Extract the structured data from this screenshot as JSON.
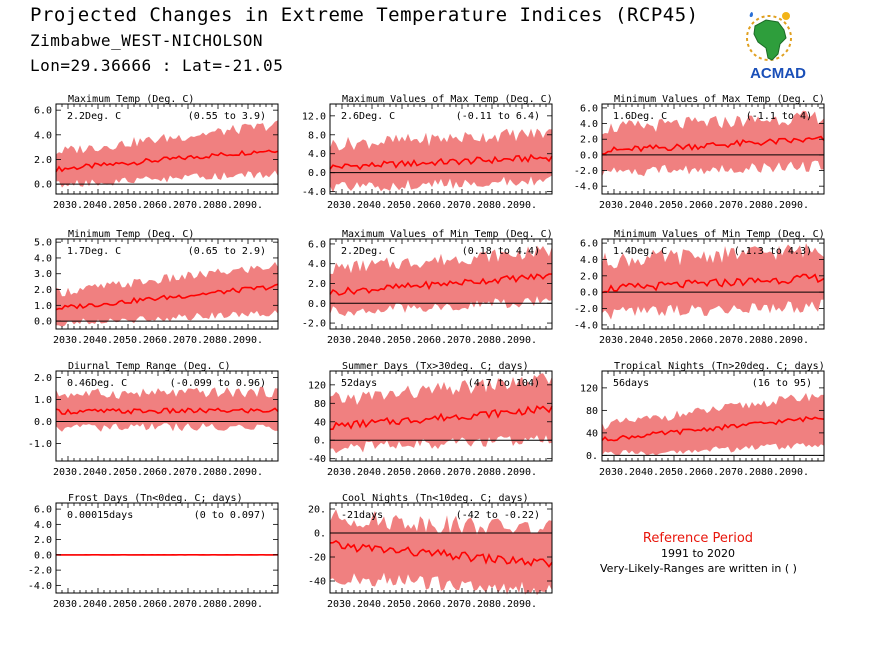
{
  "header": {
    "title": "Projected Changes in Extreme Temperature Indices (RCP45)",
    "location": "Zimbabwe_WEST-NICHOLSON",
    "coordinates": "Lon=29.36666 : Lat=-21.05"
  },
  "logo": {
    "text": "ACMAD",
    "icon": "africa-map-icon"
  },
  "reference": {
    "title": "Reference Period",
    "years": "1991 to 2020",
    "note": "Very-Likely-Ranges are written in ( )"
  },
  "colors": {
    "band": "#f08080",
    "line": "#ff0000",
    "zero_line": "#000000",
    "reference_title": "#e8160c"
  },
  "chart_data": [
    {
      "type": "area",
      "title": "Maximum Temp (Deg. C)",
      "value_label": "2.2Deg. C",
      "range_label": "(0.55 to 3.9)",
      "xlim": [
        2026,
        2100
      ],
      "ylim": [
        -0.8,
        6.5
      ],
      "xticks": [
        "2030.",
        "2040.",
        "2050.",
        "2060.",
        "2070.",
        "2080.",
        "2090."
      ],
      "yticks": [
        "0.0",
        "2.0",
        "4.0",
        "6.0"
      ],
      "ytick_values": [
        0,
        2,
        4,
        6
      ],
      "series": [
        {
          "x": [
            2026,
            2100
          ],
          "values": [
            1.2,
            2.8
          ]
        },
        {
          "x": [
            2026,
            2100
          ],
          "low": [
            0.3,
            1.2
          ],
          "high": [
            2.2,
            4.4
          ]
        }
      ]
    },
    {
      "type": "area",
      "title": "Maximum Values of Max Temp (Deg. C)",
      "value_label": "2.6Deg. C",
      "range_label": "(-0.11 to 6.4)",
      "xlim": [
        2026,
        2100
      ],
      "ylim": [
        -4.5,
        14.5
      ],
      "xticks": [
        "2030.",
        "2040.",
        "2050.",
        "2060.",
        "2070.",
        "2080.",
        "2090."
      ],
      "yticks": [
        "-4.0",
        "0.0",
        "4.0",
        "8.0",
        "12.0"
      ],
      "ytick_values": [
        -4,
        0,
        4,
        8,
        12
      ],
      "series": [
        {
          "x": [
            2026,
            2100
          ],
          "values": [
            1.2,
            3.2
          ]
        },
        {
          "x": [
            2026,
            2100
          ],
          "low": [
            -2.0,
            -0.5
          ],
          "high": [
            4.5,
            7.0
          ]
        }
      ]
    },
    {
      "type": "area",
      "title": "Minimum Values of Max Temp (Deg. C)",
      "value_label": "1.6Deg. C",
      "range_label": "(-1.1 to 4)",
      "xlim": [
        2026,
        2100
      ],
      "ylim": [
        -5.0,
        6.5
      ],
      "xticks": [
        "2030.",
        "2040.",
        "2050.",
        "2060.",
        "2070.",
        "2080.",
        "2090."
      ],
      "yticks": [
        "-4.0",
        "-2.0",
        "0.0",
        "2.0",
        "4.0",
        "6.0"
      ],
      "ytick_values": [
        -4,
        -2,
        0,
        2,
        4,
        6
      ],
      "series": [
        {
          "x": [
            2026,
            2100
          ],
          "values": [
            0.5,
            2.0
          ]
        },
        {
          "x": [
            2026,
            2100
          ],
          "low": [
            -1.5,
            -0.7
          ],
          "high": [
            2.5,
            4.0
          ]
        }
      ]
    },
    {
      "type": "area",
      "title": "Minimum Temp (Deg. C)",
      "value_label": "1.7Deg. C",
      "range_label": "(0.65 to 2.9)",
      "xlim": [
        2026,
        2100
      ],
      "ylim": [
        -0.5,
        5.2
      ],
      "xticks": [
        "2030.",
        "2040.",
        "2050.",
        "2060.",
        "2070.",
        "2080.",
        "2090."
      ],
      "yticks": [
        "0.0",
        "1.0",
        "2.0",
        "3.0",
        "4.0",
        "5.0"
      ],
      "ytick_values": [
        0,
        1,
        2,
        3,
        4,
        5
      ],
      "series": [
        {
          "x": [
            2026,
            2100
          ],
          "values": [
            0.8,
            2.2
          ]
        },
        {
          "x": [
            2026,
            2100
          ],
          "low": [
            0.1,
            0.8
          ],
          "high": [
            1.5,
            3.2
          ]
        }
      ]
    },
    {
      "type": "area",
      "title": "Maximum Values of Min Temp (Deg. C)",
      "value_label": "2.2Deg. C",
      "range_label": "(0.18 to 4.4)",
      "xlim": [
        2026,
        2100
      ],
      "ylim": [
        -2.6,
        6.5
      ],
      "xticks": [
        "2030.",
        "2040.",
        "2050.",
        "2060.",
        "2070.",
        "2080.",
        "2090."
      ],
      "yticks": [
        "-2.0",
        "0.0",
        "2.0",
        "4.0",
        "6.0"
      ],
      "ytick_values": [
        -2,
        0,
        2,
        4,
        6
      ],
      "series": [
        {
          "x": [
            2026,
            2100
          ],
          "values": [
            1.1,
            2.8
          ]
        },
        {
          "x": [
            2026,
            2100
          ],
          "low": [
            -0.3,
            0.8
          ],
          "high": [
            2.8,
            4.6
          ]
        }
      ]
    },
    {
      "type": "area",
      "title": "Minimum Values of Min Temp (Deg. C)",
      "value_label": "1.4Deg. C",
      "range_label": "(-1.3 to 4.3)",
      "xlim": [
        2026,
        2100
      ],
      "ylim": [
        -4.5,
        6.5
      ],
      "xticks": [
        "2030.",
        "2040.",
        "2050.",
        "2060.",
        "2070.",
        "2080.",
        "2090."
      ],
      "yticks": [
        "-4.0",
        "-2.0",
        "0.0",
        "2.0",
        "4.0",
        "6.0"
      ],
      "ytick_values": [
        -4,
        -2,
        0,
        2,
        4,
        6
      ],
      "series": [
        {
          "x": [
            2026,
            2100
          ],
          "values": [
            0.4,
            1.8
          ]
        },
        {
          "x": [
            2026,
            2100
          ],
          "low": [
            -1.8,
            -0.8
          ],
          "high": [
            2.8,
            4.2
          ]
        }
      ]
    },
    {
      "type": "area",
      "title": "Diurnal Temp Range (Deg. C)",
      "value_label": "0.46Deg. C",
      "range_label": "(-0.099 to 0.96)",
      "xlim": [
        2026,
        2100
      ],
      "ylim": [
        -1.8,
        2.3
      ],
      "xticks": [
        "2030.",
        "2040.",
        "2050.",
        "2060.",
        "2070.",
        "2080.",
        "2090."
      ],
      "yticks": [
        "-1.0",
        "0.0",
        "1.0",
        "2.0"
      ],
      "ytick_values": [
        -1,
        0,
        1,
        2
      ],
      "series": [
        {
          "x": [
            2026,
            2100
          ],
          "values": [
            0.45,
            0.5
          ]
        },
        {
          "x": [
            2026,
            2100
          ],
          "low": [
            -0.1,
            -0.05
          ],
          "high": [
            1.0,
            1.1
          ]
        }
      ]
    },
    {
      "type": "area",
      "title": "Summer Days (Tx>30deg. C; days)",
      "value_label": "52days",
      "range_label": "(4.7 to 104)",
      "xlim": [
        2026,
        2100
      ],
      "ylim": [
        -45,
        150
      ],
      "xticks": [
        "2030.",
        "2040.",
        "2050.",
        "2060.",
        "2070.",
        "2080.",
        "2090."
      ],
      "yticks": [
        "-40",
        "0.",
        "40",
        "80",
        "120"
      ],
      "ytick_values": [
        -40,
        0,
        40,
        80,
        120
      ],
      "series": [
        {
          "x": [
            2026,
            2100
          ],
          "values": [
            30,
            68
          ]
        },
        {
          "x": [
            2026,
            2100
          ],
          "low": [
            -5,
            15
          ],
          "high": [
            70,
            115
          ]
        }
      ]
    },
    {
      "type": "area",
      "title": "Tropical Nights (Tn>20deg. C; days)",
      "value_label": "56days",
      "range_label": "(16 to 95)",
      "xlim": [
        2026,
        2100
      ],
      "ylim": [
        -10,
        150
      ],
      "xticks": [
        "2030.",
        "2040.",
        "2050.",
        "2060.",
        "2070.",
        "2080.",
        "2090."
      ],
      "yticks": [
        "0.",
        "40",
        "80",
        "120"
      ],
      "ytick_values": [
        0,
        40,
        80,
        120
      ],
      "series": [
        {
          "x": [
            2026,
            2100
          ],
          "values": [
            28,
            68
          ]
        },
        {
          "x": [
            2026,
            2100
          ],
          "low": [
            8,
            25
          ],
          "high": [
            45,
            100
          ]
        }
      ]
    },
    {
      "type": "area",
      "title": "Frost Days (Tn<0deg. C; days)",
      "value_label": "0.00015days",
      "range_label": "(0 to 0.097)",
      "xlim": [
        2026,
        2100
      ],
      "ylim": [
        -5.0,
        6.8
      ],
      "xticks": [
        "2030.",
        "2040.",
        "2050.",
        "2060.",
        "2070.",
        "2080.",
        "2090."
      ],
      "yticks": [
        "-4.0",
        "-2.0",
        "0.0",
        "2.0",
        "4.0",
        "6.0"
      ],
      "ytick_values": [
        -4,
        -2,
        0,
        2,
        4,
        6
      ],
      "series": [
        {
          "x": [
            2026,
            2100
          ],
          "values": [
            0.0,
            0.0
          ]
        },
        {
          "x": [
            2026,
            2100
          ],
          "low": [
            0.0,
            0.0
          ],
          "high": [
            0.05,
            0.05
          ]
        }
      ]
    },
    {
      "type": "area",
      "title": "Cool Nights (Tn<10deg. C; days)",
      "value_label": "-21days",
      "range_label": "(-42 to -0.22)",
      "xlim": [
        2026,
        2100
      ],
      "ylim": [
        -50,
        25
      ],
      "xticks": [
        "2030.",
        "2040.",
        "2050.",
        "2060.",
        "2070.",
        "2080.",
        "2090."
      ],
      "yticks": [
        "-40",
        "-20",
        "0.",
        "20."
      ],
      "ytick_values": [
        -40,
        -20,
        0,
        20
      ],
      "series": [
        {
          "x": [
            2026,
            2100
          ],
          "values": [
            -10,
            -26
          ]
        },
        {
          "x": [
            2026,
            2100
          ],
          "low": [
            -30,
            -42
          ],
          "high": [
            5,
            -5
          ]
        }
      ]
    }
  ]
}
